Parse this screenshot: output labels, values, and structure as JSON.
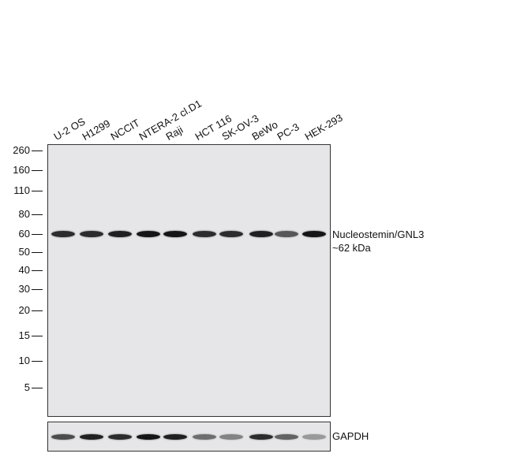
{
  "lanes": [
    "U-2 OS",
    "H1299",
    "NCCIT",
    "NTERA-2 cl.D1",
    "Raji",
    "HCT 116",
    "SK-OV-3",
    "BeWo",
    "PC-3",
    "HEK-293"
  ],
  "markers": [
    "260",
    "160",
    "110",
    "80",
    "60",
    "50",
    "40",
    "30",
    "20",
    "15",
    "10",
    "5"
  ],
  "target": {
    "name": "Nucleostemin/GNL3",
    "size": "~62 kDa",
    "band_intensity": [
      0.85,
      0.85,
      0.9,
      0.95,
      0.95,
      0.85,
      0.85,
      0.9,
      0.65,
      0.95
    ]
  },
  "loading_control": {
    "name": "GAPDH",
    "band_intensity": [
      0.7,
      0.9,
      0.85,
      0.95,
      0.9,
      0.55,
      0.45,
      0.85,
      0.6,
      0.35
    ]
  },
  "colors": {
    "membrane": "#e6e6e8",
    "band": "#0d0d0d"
  }
}
